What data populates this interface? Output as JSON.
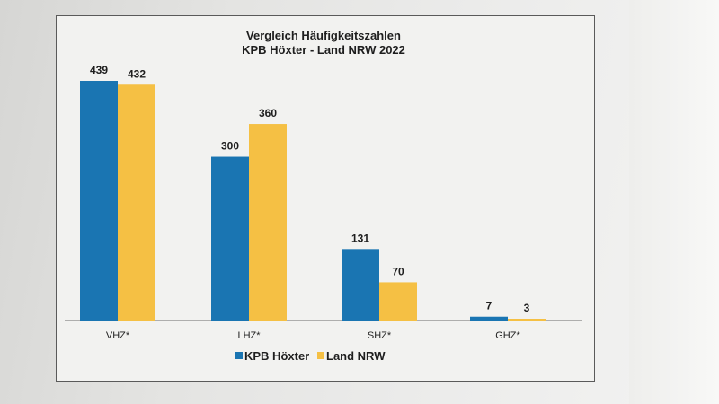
{
  "chart_data": {
    "type": "bar",
    "title": "Vergleich Häufigkeitszahlen",
    "subtitle": "KPB Höxter - Land NRW 2022",
    "categories": [
      "VHZ*",
      "LHZ*",
      "SHZ*",
      "GHZ*"
    ],
    "series": [
      {
        "name": "KPB Höxter",
        "values": [
          439,
          300,
          131,
          7
        ],
        "color": "#1a75b2"
      },
      {
        "name": "Land NRW",
        "values": [
          432,
          360,
          70,
          3
        ],
        "color": "#f5c044"
      }
    ],
    "ylim": [
      0,
      450
    ],
    "grid": false,
    "legend": "bottom-center",
    "xlabel": "",
    "ylabel": ""
  }
}
